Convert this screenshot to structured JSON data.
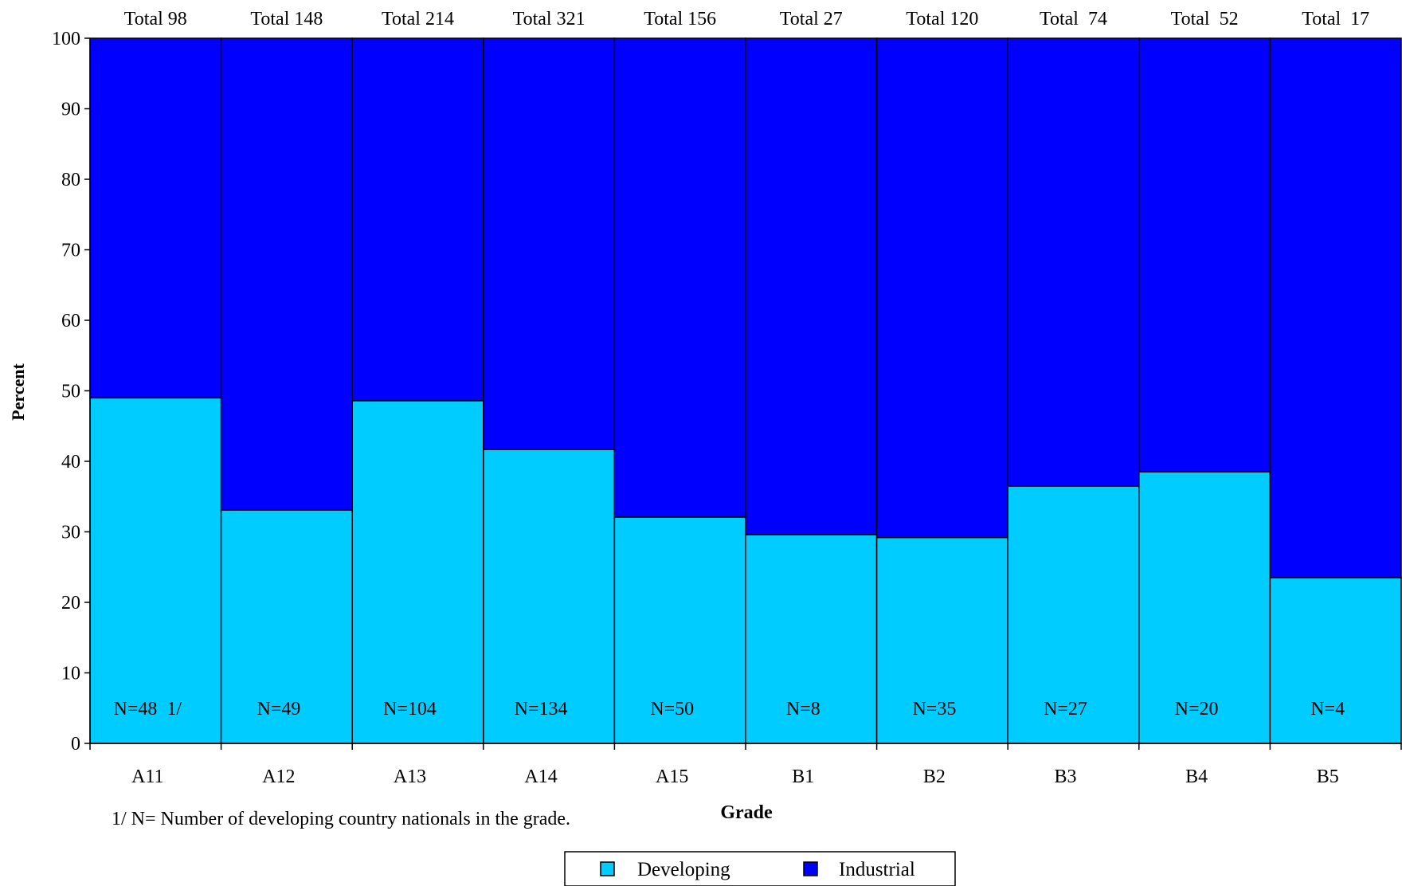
{
  "chart_data": {
    "type": "bar",
    "stacked": true,
    "percent_stacked": true,
    "xlabel": "Grade",
    "ylabel": "Percent",
    "ylim": [
      0,
      100
    ],
    "yticks": [
      0,
      10,
      20,
      30,
      40,
      50,
      60,
      70,
      80,
      90,
      100
    ],
    "grid": false,
    "legend_position": "bottom",
    "categories": [
      "A11",
      "A12",
      "A13",
      "A14",
      "A15",
      "B1",
      "B2",
      "B3",
      "B4",
      "B5"
    ],
    "totals_labels": [
      "Total 98",
      "Total 148",
      "Total 214",
      "Total 321",
      "Total 156",
      "Total 27",
      "Total 120",
      "Total  74",
      "Total  52",
      "Total  17"
    ],
    "count_labels": [
      "N=48  1/",
      "N=49",
      "N=104",
      "N=134",
      "N=50",
      "N=8",
      "N=35",
      "N=27",
      "N=20",
      "N=4"
    ],
    "series": [
      {
        "name": "Developing",
        "color": "#00ccff",
        "values": [
          49,
          33.1,
          48.6,
          41.7,
          32.1,
          29.6,
          29.2,
          36.5,
          38.5,
          23.5
        ]
      },
      {
        "name": "Industrial",
        "color": "#0000ff",
        "values": [
          51,
          66.9,
          51.4,
          58.3,
          67.9,
          70.4,
          70.8,
          63.5,
          61.5,
          76.5
        ]
      }
    ],
    "footnote": "1/ N= Number of  developing country nationals in the grade."
  }
}
